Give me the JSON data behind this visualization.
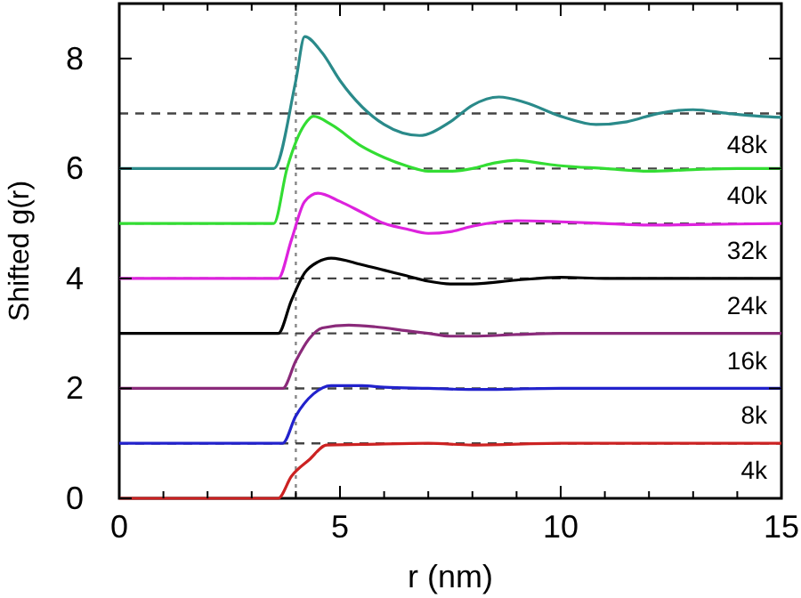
{
  "chart_data": {
    "type": "line",
    "xlabel": "r (nm)",
    "ylabel": "Shifted g(r)",
    "xlim": [
      0,
      15
    ],
    "ylim": [
      0,
      9
    ],
    "xticks": [
      0,
      {
        "value": 1,
        "label": null
      },
      {
        "value": 2,
        "label": null
      },
      {
        "value": 3,
        "label": null
      },
      {
        "value": 4,
        "label": null
      },
      5,
      {
        "value": 6,
        "label": null
      },
      {
        "value": 7,
        "label": null
      },
      {
        "value": 8,
        "label": null
      },
      {
        "value": 9,
        "label": null
      },
      10,
      {
        "value": 11,
        "label": null
      },
      {
        "value": 12,
        "label": null
      },
      {
        "value": 13,
        "label": null
      },
      {
        "value": 14,
        "label": null
      },
      15
    ],
    "yticks": [
      0,
      2,
      4,
      6,
      8
    ],
    "grid": false,
    "marker": "none",
    "line_style": "solid",
    "annotations": [
      "48k",
      "40k",
      "32k",
      "24k",
      "16k",
      "8k",
      "4k"
    ],
    "ref_lines": [
      {
        "axis": "x",
        "value": 4,
        "line_style": "dotted",
        "color": "#888888"
      },
      {
        "axis": "y",
        "value": 1,
        "line_style": "dashed",
        "color": "#444444"
      },
      {
        "axis": "y",
        "value": 2,
        "line_style": "dashed",
        "color": "#444444"
      },
      {
        "axis": "y",
        "value": 3,
        "line_style": "dashed",
        "color": "#444444"
      },
      {
        "axis": "y",
        "value": 4,
        "line_style": "dashed",
        "color": "#444444"
      },
      {
        "axis": "y",
        "value": 5,
        "line_style": "dashed",
        "color": "#444444"
      },
      {
        "axis": "y",
        "value": 6,
        "line_style": "dashed",
        "color": "#444444"
      },
      {
        "axis": "y",
        "value": 7,
        "line_style": "dashed",
        "color": "#444444"
      }
    ],
    "series": [
      {
        "color": "#2a8a8a",
        "x": [
          0,
          3.5,
          4.0,
          4.2,
          4.6,
          5,
          6,
          6.8,
          7.5,
          8,
          8.6,
          9.2,
          10,
          10.8,
          11.5,
          12.2,
          13,
          13.8,
          14.5,
          15
        ],
        "values": [
          6,
          6,
          7.6,
          8.4,
          8.1,
          7.6,
          6.8,
          6.6,
          6.85,
          7.15,
          7.3,
          7.2,
          6.95,
          6.8,
          6.85,
          7.0,
          7.07,
          7.0,
          6.95,
          6.93
        ]
      },
      {
        "color": "#33dd33",
        "x": [
          0,
          3.5,
          3.8,
          4.2,
          4.4,
          4.8,
          5.5,
          6,
          6.5,
          7,
          7.5,
          8,
          8.5,
          9,
          9.5,
          10,
          11,
          12,
          13,
          14,
          15
        ],
        "values": [
          5,
          5,
          6.0,
          6.8,
          6.95,
          6.8,
          6.4,
          6.2,
          6.05,
          5.95,
          5.95,
          6.0,
          6.1,
          6.15,
          6.1,
          6.05,
          6.0,
          5.95,
          5.98,
          6.0,
          6.0
        ]
      },
      {
        "color": "#dd22dd",
        "x": [
          0,
          3.6,
          3.9,
          4.2,
          4.5,
          5,
          5.5,
          6,
          6.5,
          7,
          7.5,
          8,
          9,
          10,
          11,
          12,
          13,
          15
        ],
        "values": [
          4,
          4,
          4.7,
          5.4,
          5.55,
          5.4,
          5.2,
          5.0,
          4.9,
          4.82,
          4.85,
          4.95,
          5.05,
          5.03,
          5.0,
          4.97,
          4.98,
          5.0
        ]
      },
      {
        "color": "#000000",
        "x": [
          0,
          3.6,
          3.9,
          4.2,
          4.5,
          4.8,
          5.5,
          6,
          6.5,
          7,
          7.5,
          8,
          9,
          10,
          11,
          15
        ],
        "values": [
          3,
          3,
          3.6,
          4.1,
          4.3,
          4.37,
          4.25,
          4.15,
          4.05,
          3.95,
          3.9,
          3.9,
          3.97,
          4.02,
          4.0,
          4.0
        ]
      },
      {
        "color": "#8a2a7a",
        "x": [
          0,
          3.7,
          4.0,
          4.3,
          4.6,
          5.2,
          5.8,
          6.5,
          7,
          7.5,
          8,
          9,
          10,
          15
        ],
        "values": [
          2,
          2,
          2.5,
          2.9,
          3.1,
          3.15,
          3.12,
          3.05,
          3.0,
          2.95,
          2.95,
          2.98,
          3.0,
          3.0
        ]
      },
      {
        "color": "#2222cc",
        "x": [
          0,
          3.7,
          4.0,
          4.4,
          4.8,
          5.5,
          6,
          7,
          8,
          10,
          15
        ],
        "values": [
          1,
          1,
          1.5,
          1.9,
          2.05,
          2.05,
          2.02,
          2.0,
          1.98,
          2.0,
          2.0
        ]
      },
      {
        "color": "#cc2222",
        "x": [
          0,
          3.6,
          3.9,
          4.3,
          4.7,
          5.5,
          7,
          8,
          10,
          15
        ],
        "values": [
          0,
          0,
          0.4,
          0.7,
          0.97,
          0.98,
          1.0,
          0.97,
          1.0,
          1.0
        ]
      }
    ]
  }
}
